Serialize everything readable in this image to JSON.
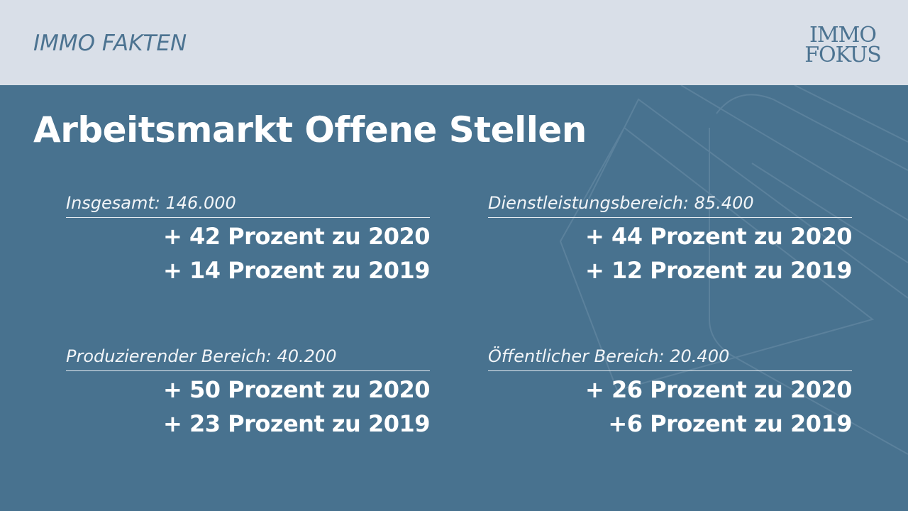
{
  "header": {
    "kicker": "IMMO FAKTEN",
    "logo_line1": "IMMO",
    "logo_line2": "FOKUS"
  },
  "title": "Arbeitsmarkt Offene Stellen",
  "cards": [
    {
      "label": "Insgesamt: 146.000",
      "line1": "+ 42 Prozent zu 2020",
      "line2": "+ 14 Prozent zu 2019"
    },
    {
      "label": "Dienstleistungsbereich: 85.400",
      "line1": "+ 44 Prozent zu 2020",
      "line2": "+ 12 Prozent zu 2019"
    },
    {
      "label": "Produzierender Bereich: 40.200",
      "line1": "+ 50 Prozent zu 2020",
      "line2": "+ 23 Prozent zu 2019"
    },
    {
      "label": "Öffentlicher Bereich: 20.400",
      "line1": "+ 26 Prozent zu 2020",
      "line2": "+6 Prozent zu 2019"
    }
  ],
  "colors": {
    "background": "#48728f",
    "header_bg": "#d9dfe8",
    "brand_blue": "#4c7391",
    "text": "#ffffff"
  }
}
